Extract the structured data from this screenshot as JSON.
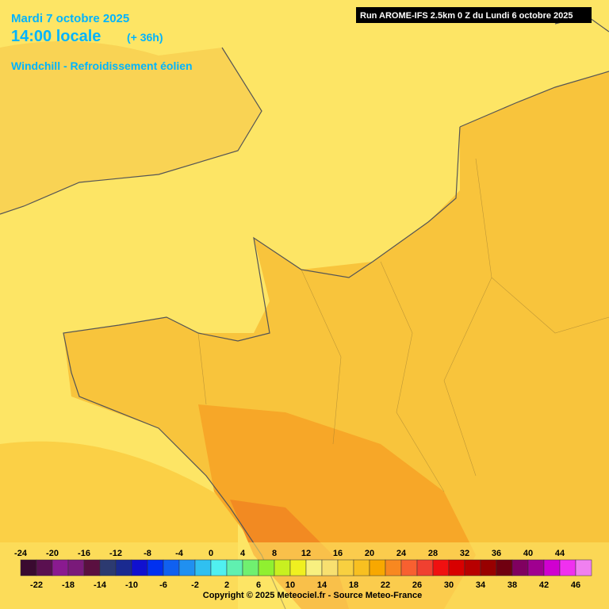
{
  "header": {
    "date": "Mardi 7 octobre 2025",
    "time": "14:00 locale",
    "lead": "(+ 36h)",
    "product": "Windchill - Refroidissement éolien"
  },
  "run": "Run AROME-IFS 2.5km 0 Z du Lundi 6 octobre 2025",
  "legend": {
    "ticks": [
      -24,
      -22,
      -20,
      -18,
      -16,
      -14,
      -12,
      -10,
      -8,
      -6,
      -4,
      -2,
      0,
      2,
      4,
      6,
      8,
      10,
      12,
      14,
      16,
      18,
      20,
      22,
      24,
      26,
      28,
      30,
      32,
      34,
      36,
      38,
      40,
      42,
      44,
      46
    ],
    "colors": [
      "#3a0a30",
      "#5a1050",
      "#8a1a90",
      "#7a1a7a",
      "#5a1040",
      "#2c3a70",
      "#1a2a90",
      "#1010d0",
      "#0030f0",
      "#1060f0",
      "#2090f0",
      "#30c0f0",
      "#50f0f0",
      "#60f0b0",
      "#70f070",
      "#90f030",
      "#c8f020",
      "#f0f020",
      "#f8f080",
      "#f8e070",
      "#f8d040",
      "#f8c020",
      "#f8a800",
      "#f88820",
      "#f86030",
      "#f04030",
      "#f01010",
      "#d80000",
      "#b80000",
      "#980000",
      "#700010",
      "#800060",
      "#a00090",
      "#d000d0",
      "#f030f0",
      "#f080f0"
    ]
  },
  "copyright": "Copyright © 2025 Meteociel.fr - Source Meteo-France"
}
